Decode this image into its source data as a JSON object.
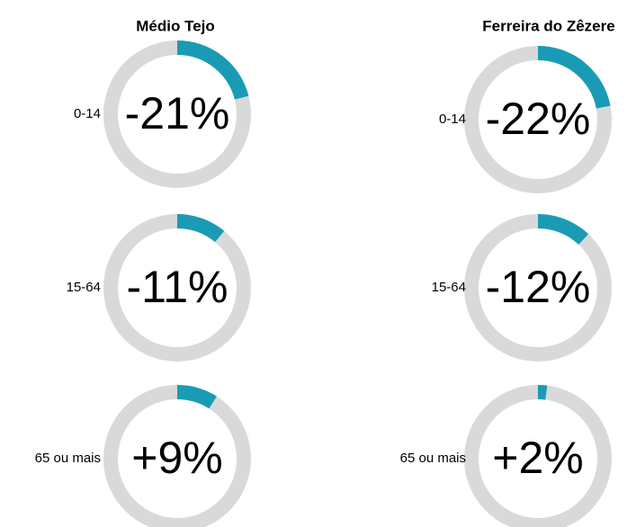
{
  "chart_data": [
    {
      "type": "donut",
      "title": "Médio Tejo",
      "categories": [
        "0-14",
        "15-64",
        "65 ou mais"
      ],
      "values": [
        -21,
        -11,
        9
      ],
      "value_labels": [
        "-21%",
        "-11%",
        "+9%"
      ],
      "lim": [
        0,
        100
      ],
      "color": "#1a9bb5",
      "track_color": "#d9d9d9"
    },
    {
      "type": "donut",
      "title": "Ferreira do Zêzere",
      "categories": [
        "0-14",
        "15-64",
        "65 ou mais"
      ],
      "values": [
        -22,
        -12,
        2
      ],
      "value_labels": [
        "-22%",
        "-12%",
        "+2%"
      ],
      "lim": [
        0,
        100
      ],
      "color": "#1a9bb5",
      "track_color": "#d9d9d9"
    }
  ]
}
